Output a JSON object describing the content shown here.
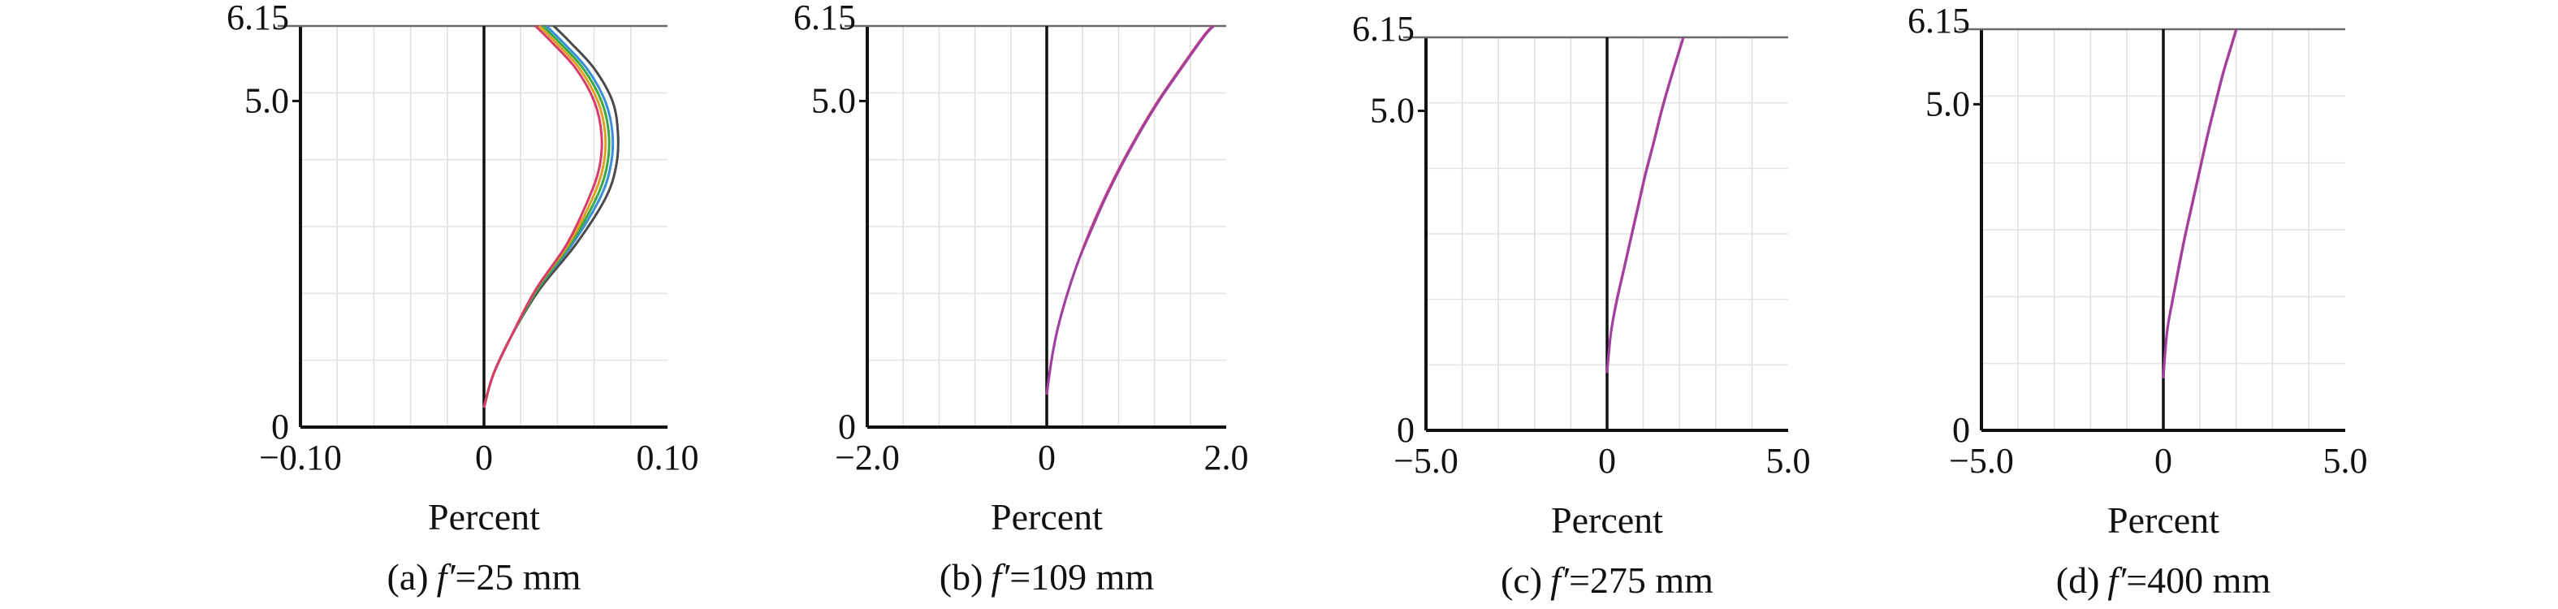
{
  "chart_data": [
    {
      "type": "line",
      "caption_label": "(a)",
      "caption_var": "f′",
      "caption_value": "=25 mm",
      "xlabel": "Percent",
      "x_ticks": [
        "−0.10",
        "0",
        "0.10"
      ],
      "y_ticks": [
        "0",
        "5.0",
        "6.15"
      ],
      "xlim": [
        -0.1,
        0.1
      ],
      "ylim": [
        0,
        6.15
      ],
      "grid": true,
      "series": [
        {
          "color": "#4a4a4a",
          "points": [
            [
              0.0,
              0.3
            ],
            [
              0.005,
              0.8
            ],
            [
              0.015,
              1.4
            ],
            [
              0.03,
              2.1
            ],
            [
              0.05,
              2.8
            ],
            [
              0.066,
              3.5
            ],
            [
              0.072,
              4.0
            ],
            [
              0.073,
              4.5
            ],
            [
              0.07,
              5.0
            ],
            [
              0.06,
              5.5
            ],
            [
              0.047,
              5.9
            ],
            [
              0.038,
              6.15
            ]
          ]
        },
        {
          "color": "#3a8fd9",
          "points": [
            [
              0.0,
              0.3
            ],
            [
              0.005,
              0.8
            ],
            [
              0.015,
              1.4
            ],
            [
              0.029,
              2.1
            ],
            [
              0.048,
              2.8
            ],
            [
              0.063,
              3.5
            ],
            [
              0.069,
              4.0
            ],
            [
              0.07,
              4.5
            ],
            [
              0.066,
              5.0
            ],
            [
              0.056,
              5.5
            ],
            [
              0.043,
              5.9
            ],
            [
              0.034,
              6.15
            ]
          ]
        },
        {
          "color": "#3aa845",
          "points": [
            [
              0.0,
              0.3
            ],
            [
              0.005,
              0.8
            ],
            [
              0.015,
              1.4
            ],
            [
              0.029,
              2.1
            ],
            [
              0.047,
              2.8
            ],
            [
              0.061,
              3.5
            ],
            [
              0.067,
              4.0
            ],
            [
              0.068,
              4.5
            ],
            [
              0.064,
              5.0
            ],
            [
              0.054,
              5.5
            ],
            [
              0.041,
              5.9
            ],
            [
              0.032,
              6.15
            ]
          ]
        },
        {
          "color": "#e0a020",
          "points": [
            [
              0.0,
              0.3
            ],
            [
              0.005,
              0.8
            ],
            [
              0.015,
              1.4
            ],
            [
              0.028,
              2.1
            ],
            [
              0.046,
              2.8
            ],
            [
              0.059,
              3.5
            ],
            [
              0.065,
              4.0
            ],
            [
              0.066,
              4.5
            ],
            [
              0.062,
              5.0
            ],
            [
              0.052,
              5.5
            ],
            [
              0.039,
              5.9
            ],
            [
              0.03,
              6.15
            ]
          ]
        },
        {
          "color": "#d63d6a",
          "points": [
            [
              0.0,
              0.3
            ],
            [
              0.005,
              0.8
            ],
            [
              0.015,
              1.4
            ],
            [
              0.028,
              2.1
            ],
            [
              0.045,
              2.8
            ],
            [
              0.057,
              3.5
            ],
            [
              0.063,
              4.0
            ],
            [
              0.064,
              4.5
            ],
            [
              0.06,
              5.0
            ],
            [
              0.05,
              5.5
            ],
            [
              0.037,
              5.9
            ],
            [
              0.028,
              6.15
            ]
          ]
        }
      ]
    },
    {
      "type": "line",
      "caption_label": "(b)",
      "caption_var": "f′",
      "caption_value": "=109 mm",
      "xlabel": "Percent",
      "x_ticks": [
        "−2.0",
        "0",
        "2.0"
      ],
      "y_ticks": [
        "0",
        "5.0",
        "6.15"
      ],
      "xlim": [
        -2.0,
        2.0
      ],
      "ylim": [
        0,
        6.15
      ],
      "grid": true,
      "series": [
        {
          "color": "#d63d6a",
          "points": [
            [
              0.0,
              0.5
            ],
            [
              0.05,
              1.0
            ],
            [
              0.12,
              1.5
            ],
            [
              0.22,
              2.0
            ],
            [
              0.34,
              2.5
            ],
            [
              0.48,
              3.0
            ],
            [
              0.64,
              3.5
            ],
            [
              0.82,
              4.0
            ],
            [
              1.02,
              4.5
            ],
            [
              1.24,
              5.0
            ],
            [
              1.49,
              5.5
            ],
            [
              1.75,
              6.0
            ],
            [
              1.85,
              6.15
            ]
          ]
        },
        {
          "color": "#a040a0",
          "points": [
            [
              0.0,
              0.5
            ],
            [
              0.05,
              1.0
            ],
            [
              0.12,
              1.5
            ],
            [
              0.22,
              2.0
            ],
            [
              0.34,
              2.5
            ],
            [
              0.49,
              3.0
            ],
            [
              0.65,
              3.5
            ],
            [
              0.83,
              4.0
            ],
            [
              1.03,
              4.5
            ],
            [
              1.25,
              5.0
            ],
            [
              1.5,
              5.5
            ],
            [
              1.76,
              6.0
            ],
            [
              1.86,
              6.15
            ]
          ]
        }
      ]
    },
    {
      "type": "line",
      "caption_label": "(c)",
      "caption_var": "f′",
      "caption_value": "=275 mm",
      "xlabel": "Percent",
      "x_ticks": [
        "−5.0",
        "0",
        "5.0"
      ],
      "y_ticks": [
        "0",
        "5.0",
        "6.15"
      ],
      "xlim": [
        -5.0,
        5.0
      ],
      "ylim": [
        0,
        6.15
      ],
      "grid": true,
      "series": [
        {
          "color": "#d63d6a",
          "points": [
            [
              0.0,
              0.9
            ],
            [
              0.1,
              1.5
            ],
            [
              0.25,
              2.0
            ],
            [
              0.45,
              2.5
            ],
            [
              0.65,
              3.0
            ],
            [
              0.85,
              3.5
            ],
            [
              1.05,
              4.0
            ],
            [
              1.28,
              4.5
            ],
            [
              1.5,
              5.0
            ],
            [
              1.75,
              5.5
            ],
            [
              2.02,
              6.0
            ],
            [
              2.1,
              6.15
            ]
          ]
        },
        {
          "color": "#a040a0",
          "points": [
            [
              0.0,
              0.9
            ],
            [
              0.1,
              1.5
            ],
            [
              0.26,
              2.0
            ],
            [
              0.46,
              2.5
            ],
            [
              0.66,
              3.0
            ],
            [
              0.86,
              3.5
            ],
            [
              1.06,
              4.0
            ],
            [
              1.29,
              4.5
            ],
            [
              1.51,
              5.0
            ],
            [
              1.76,
              5.5
            ],
            [
              2.03,
              6.0
            ],
            [
              2.11,
              6.15
            ]
          ]
        }
      ]
    },
    {
      "type": "line",
      "caption_label": "(d)",
      "caption_var": "f′",
      "caption_value": "=400 mm",
      "xlabel": "Percent",
      "x_ticks": [
        "−5.0",
        "0",
        "5.0"
      ],
      "y_ticks": [
        "0",
        "5.0",
        "6.15"
      ],
      "xlim": [
        -5.0,
        5.0
      ],
      "ylim": [
        0,
        6.15
      ],
      "grid": true,
      "series": [
        {
          "color": "#d63d6a",
          "points": [
            [
              0.0,
              0.8
            ],
            [
              0.1,
              1.5
            ],
            [
              0.25,
              2.0
            ],
            [
              0.42,
              2.5
            ],
            [
              0.6,
              3.0
            ],
            [
              0.8,
              3.5
            ],
            [
              1.0,
              4.0
            ],
            [
              1.2,
              4.5
            ],
            [
              1.42,
              5.0
            ],
            [
              1.65,
              5.5
            ],
            [
              1.92,
              6.0
            ],
            [
              2.0,
              6.15
            ]
          ]
        },
        {
          "color": "#a040a0",
          "points": [
            [
              0.0,
              0.8
            ],
            [
              0.1,
              1.5
            ],
            [
              0.26,
              2.0
            ],
            [
              0.43,
              2.5
            ],
            [
              0.61,
              3.0
            ],
            [
              0.81,
              3.5
            ],
            [
              1.01,
              4.0
            ],
            [
              1.21,
              4.5
            ],
            [
              1.43,
              5.0
            ],
            [
              1.66,
              5.5
            ],
            [
              1.93,
              6.0
            ],
            [
              2.01,
              6.15
            ]
          ]
        }
      ]
    }
  ]
}
